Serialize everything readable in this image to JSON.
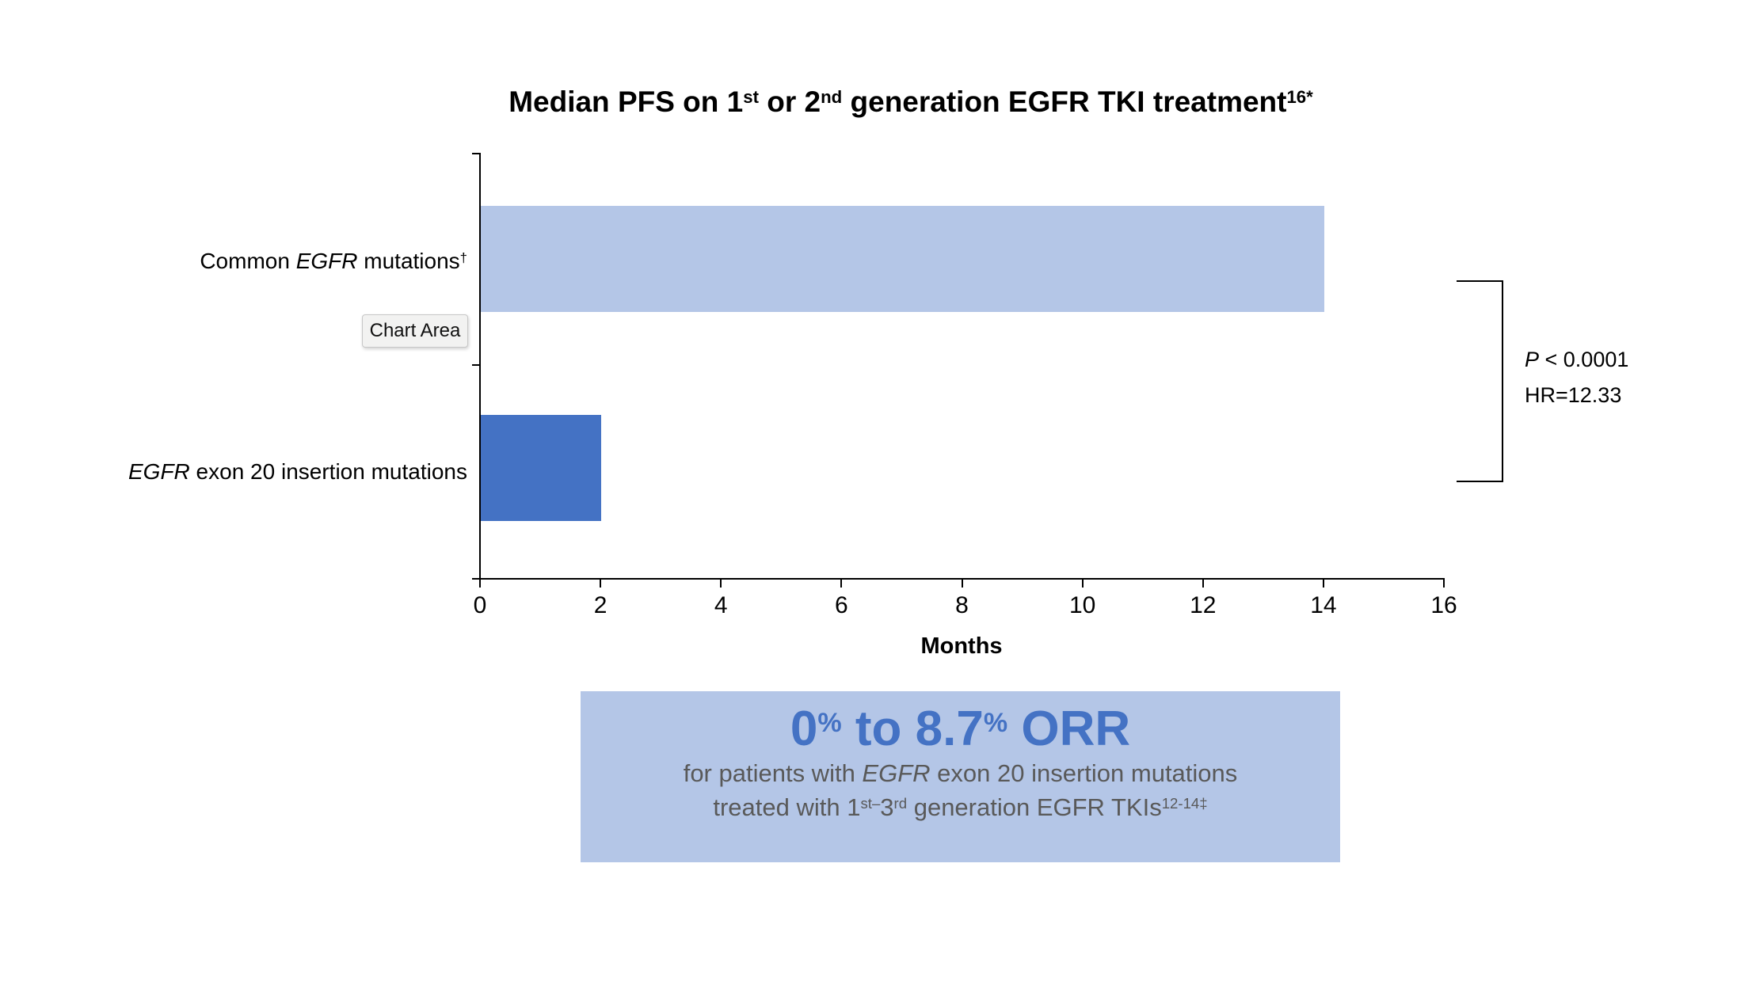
{
  "chart": {
    "title": {
      "t1": "Median PFS on 1",
      "sup1": "st",
      "t2": " or 2",
      "sup2": "nd",
      "t3": " generation EGFR TKI treatment",
      "sup3": "16*"
    },
    "tooltip": "Chart Area",
    "x_axis_label": "Months",
    "categories_rich": [
      {
        "pre": "Common ",
        "gene": "EGFR",
        "post": " mutations",
        "sup": "†"
      },
      {
        "pre": "",
        "gene": "EGFR",
        "post": " exon 20 insertion mutations",
        "sup": ""
      }
    ],
    "stats": {
      "p_label": "P",
      "p_value": " < 0.0001",
      "hr": "HR=12.33"
    }
  },
  "orr_box": {
    "headline": {
      "v1": "0",
      "sup1": "%",
      "mid": " to 8.7",
      "sup2": "%",
      "end": " ORR"
    },
    "line2": {
      "pre": "for patients with ",
      "gene": "EGFR",
      "post": " exon 20 insertion mutations"
    },
    "line3": {
      "pre": "treated with 1",
      "sup1": "st–",
      "n2": "3",
      "sup2": "rd",
      "post": " generation EGFR TKIs",
      "sup3": "12-14‡"
    }
  },
  "colors": {
    "bar_light_blue": "#B4C6E7",
    "bar_dark_blue": "#4472C4",
    "headline_blue": "#4472C4",
    "body_gray": "#595959",
    "axis_black": "#000000",
    "callout_background": "#B4C6E7"
  },
  "chart_data": {
    "type": "bar",
    "orientation": "horizontal",
    "title": "Median PFS on 1st or 2nd generation EGFR TKI treatment16*",
    "categories": [
      "Common EGFR mutations†",
      "EGFR exon 20 insertion mutations"
    ],
    "values": [
      14,
      2
    ],
    "unit": "months",
    "xlabel": "Months",
    "ylabel": "",
    "xlim": [
      0,
      16
    ],
    "x_ticks": [
      "0",
      "2",
      "4",
      "6",
      "8",
      "10",
      "12",
      "14",
      "16"
    ],
    "grid": false,
    "legend": false,
    "bar_colors": [
      "#B4C6E7",
      "#4472C4"
    ],
    "annotations": [
      "P < 0.0001",
      "HR=12.33",
      "0% to 8.7% ORR for patients with EGFR exon 20 insertion mutations treated with 1st–3rd generation EGFR TKIs12-14‡"
    ]
  }
}
